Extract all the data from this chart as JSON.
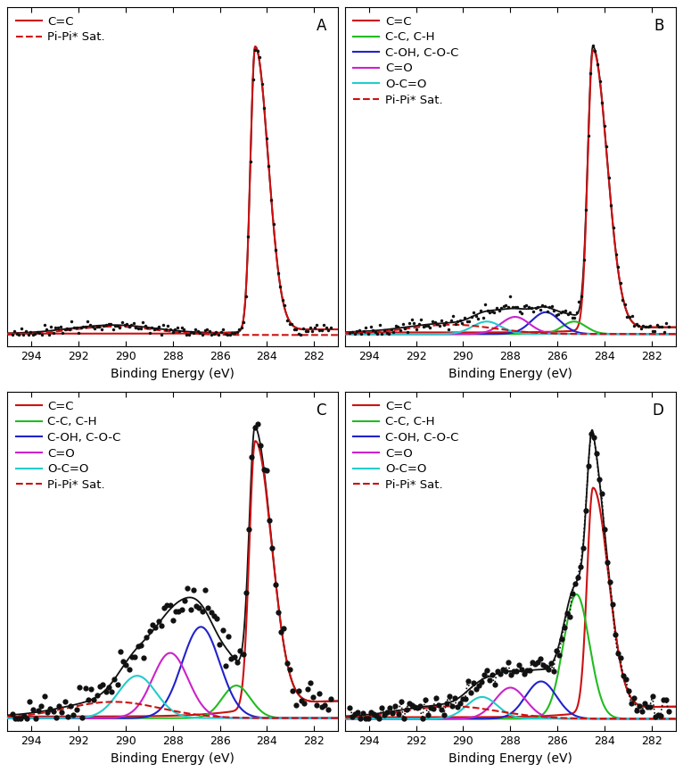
{
  "xlim": [
    295,
    281
  ],
  "xticks": [
    294,
    292,
    290,
    288,
    286,
    284,
    282
  ],
  "xlabel": "Binding Energy (eV)",
  "panel_labels": [
    "A",
    "B",
    "C",
    "D"
  ],
  "colors": {
    "cc": "#cc1111",
    "cc_ch": "#22bb22",
    "coh_coc": "#2222cc",
    "co": "#cc22cc",
    "occo": "#22cccc",
    "pipi": "#cc1111",
    "data": "#111111",
    "bg": "#111111"
  }
}
